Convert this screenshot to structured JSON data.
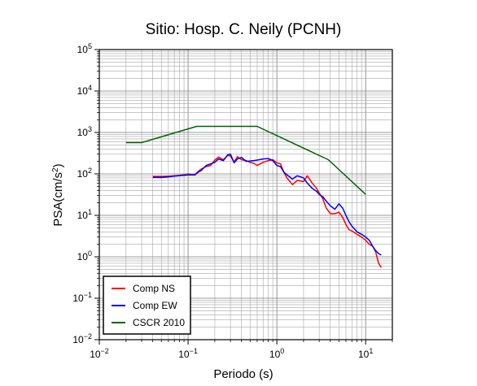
{
  "chart_data": {
    "type": "line",
    "title": "Sitio: Hosp. C. Neily (PCNH)",
    "xlabel": "Periodo (s)",
    "ylabel_main": "PSA(cm/s",
    "ylabel_sup": "2",
    "ylabel_tail": ")",
    "x_scale": "log",
    "y_scale": "log",
    "xlim": [
      0.01,
      20
    ],
    "ylim": [
      0.01,
      100000
    ],
    "grid": true,
    "legend_position": "bottom-left",
    "x_ticks": [
      {
        "base": "10",
        "exp": "−2",
        "value": 0.01
      },
      {
        "base": "10",
        "exp": "−1",
        "value": 0.1
      },
      {
        "base": "10",
        "exp": "0",
        "value": 1
      },
      {
        "base": "10",
        "exp": "1",
        "value": 10
      }
    ],
    "y_ticks": [
      {
        "base": "10",
        "exp": "−2",
        "value": 0.01
      },
      {
        "base": "10",
        "exp": "−1",
        "value": 0.1
      },
      {
        "base": "10",
        "exp": "0",
        "value": 1
      },
      {
        "base": "10",
        "exp": "1",
        "value": 10
      },
      {
        "base": "10",
        "exp": "2",
        "value": 100
      },
      {
        "base": "10",
        "exp": "3",
        "value": 1000
      },
      {
        "base": "10",
        "exp": "4",
        "value": 10000
      },
      {
        "base": "10",
        "exp": "5",
        "value": 100000
      }
    ],
    "series": [
      {
        "name": "Comp NS",
        "color": "#ff0000",
        "x": [
          0.04,
          0.05,
          0.06,
          0.07,
          0.08,
          0.09,
          0.1,
          0.11,
          0.12,
          0.13,
          0.14,
          0.16,
          0.18,
          0.2,
          0.22,
          0.25,
          0.28,
          0.3,
          0.33,
          0.36,
          0.4,
          0.45,
          0.5,
          0.55,
          0.6,
          0.7,
          0.8,
          0.9,
          1.0,
          1.1,
          1.2,
          1.3,
          1.5,
          1.7,
          2.0,
          2.2,
          2.5,
          2.8,
          3.0,
          3.3,
          3.6,
          4.0,
          4.5,
          5.0,
          5.5,
          6.0,
          6.5,
          7.0,
          8.0,
          9.0,
          10.0,
          11.0,
          12.0,
          13.0,
          14.0,
          15.0
        ],
        "y": [
          87,
          86,
          88,
          90,
          92,
          95,
          100,
          97,
          98,
          115,
          130,
          150,
          160,
          215,
          255,
          220,
          280,
          270,
          195,
          260,
          220,
          210,
          190,
          180,
          160,
          190,
          210,
          220,
          185,
          175,
          110,
          80,
          55,
          70,
          65,
          90,
          60,
          45,
          35,
          25,
          15,
          11,
          11,
          12,
          9,
          6,
          4.5,
          4.2,
          3.5,
          3.0,
          2.5,
          2.0,
          1.8,
          1.3,
          0.7,
          0.55
        ]
      },
      {
        "name": "Comp EW",
        "color": "#0000ff",
        "x": [
          0.04,
          0.05,
          0.06,
          0.07,
          0.08,
          0.09,
          0.1,
          0.11,
          0.12,
          0.13,
          0.14,
          0.16,
          0.18,
          0.2,
          0.22,
          0.25,
          0.28,
          0.3,
          0.33,
          0.36,
          0.4,
          0.45,
          0.5,
          0.55,
          0.6,
          0.7,
          0.8,
          0.9,
          1.0,
          1.1,
          1.2,
          1.3,
          1.5,
          1.7,
          2.0,
          2.2,
          2.5,
          2.8,
          3.0,
          3.3,
          3.6,
          4.0,
          4.5,
          5.0,
          5.5,
          6.0,
          6.5,
          7.0,
          8.0,
          9.0,
          10.0,
          11.0,
          12.0,
          13.0,
          14.0,
          15.0
        ],
        "y": [
          82,
          82,
          85,
          88,
          90,
          92,
          95,
          95,
          95,
          110,
          120,
          160,
          175,
          190,
          230,
          210,
          290,
          300,
          185,
          230,
          250,
          200,
          205,
          210,
          215,
          230,
          235,
          210,
          160,
          150,
          110,
          95,
          75,
          90,
          80,
          60,
          45,
          38,
          32,
          28,
          22,
          17,
          14,
          19,
          15,
          10,
          7,
          5.5,
          4.0,
          3.5,
          3.0,
          2.5,
          1.8,
          1.4,
          1.2,
          1.1
        ]
      },
      {
        "name": "CSCR 2010",
        "color": "#006400",
        "x": [
          0.02,
          0.03,
          0.125,
          0.6,
          3.8,
          10.0
        ],
        "y": [
          570,
          570,
          1400,
          1400,
          220,
          32
        ]
      }
    ]
  }
}
